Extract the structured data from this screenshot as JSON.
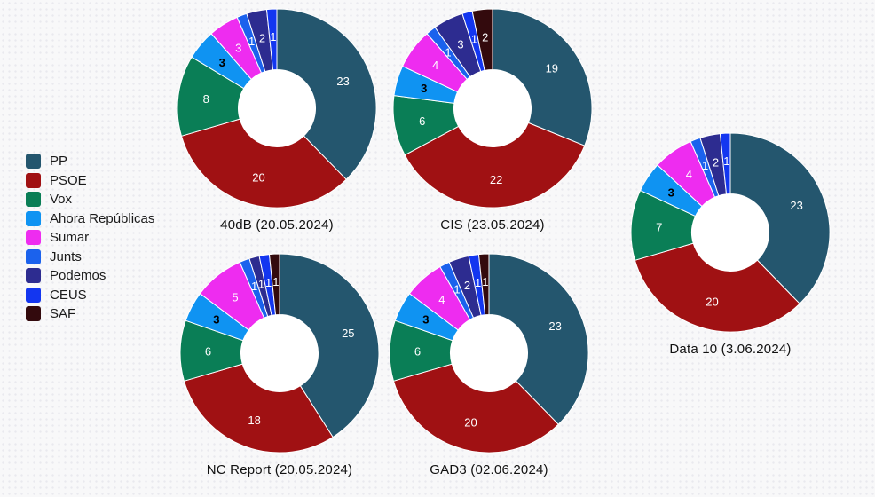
{
  "page": {
    "background_color": "#f8f8f9",
    "dot_color": "#e9e9ee",
    "hole_color": "#ffffff",
    "title_color": "#111111",
    "label_light_color": "#ffffff",
    "label_dark_color": "#000000"
  },
  "palette": {
    "PP": "#24566E",
    "PSOE": "#A01113",
    "Vox": "#0A7E56",
    "Ahora Repúblicas": "#0F93F2",
    "Sumar": "#EE2CF0",
    "Junts": "#1B62ED",
    "Podemos": "#2D2C90",
    "CEUS": "#1336F0",
    "SAF": "#330A0D"
  },
  "legend": {
    "position": "left",
    "items": [
      "PP",
      "PSOE",
      "Vox",
      "Ahora Repúblicas",
      "Sumar",
      "Junts",
      "Podemos",
      "CEUS",
      "SAF"
    ]
  },
  "chart_data": [
    {
      "type": "pie",
      "variant": "donut",
      "title": "40dB (20.05.2024)",
      "slices": [
        {
          "label": "PP",
          "value": 23
        },
        {
          "label": "PSOE",
          "value": 20
        },
        {
          "label": "Vox",
          "value": 8
        },
        {
          "label": "Ahora Repúblicas",
          "value": 3
        },
        {
          "label": "Sumar",
          "value": 3
        },
        {
          "label": "Junts",
          "value": 1
        },
        {
          "label": "Podemos",
          "value": 2
        },
        {
          "label": "CEUS",
          "value": 1
        }
      ]
    },
    {
      "type": "pie",
      "variant": "donut",
      "title": "CIS (23.05.2024)",
      "slices": [
        {
          "label": "PP",
          "value": 19
        },
        {
          "label": "PSOE",
          "value": 22
        },
        {
          "label": "Vox",
          "value": 6
        },
        {
          "label": "Ahora Repúblicas",
          "value": 3
        },
        {
          "label": "Sumar",
          "value": 4
        },
        {
          "label": "Junts",
          "value": 1
        },
        {
          "label": "Podemos",
          "value": 3
        },
        {
          "label": "CEUS",
          "value": 1
        },
        {
          "label": "SAF",
          "value": 2
        }
      ]
    },
    {
      "type": "pie",
      "variant": "donut",
      "title": "Data 10 (3.06.2024)",
      "slices": [
        {
          "label": "PP",
          "value": 23
        },
        {
          "label": "PSOE",
          "value": 20
        },
        {
          "label": "Vox",
          "value": 7
        },
        {
          "label": "Ahora Repúblicas",
          "value": 3
        },
        {
          "label": "Sumar",
          "value": 4
        },
        {
          "label": "Junts",
          "value": 1
        },
        {
          "label": "Podemos",
          "value": 2
        },
        {
          "label": "CEUS",
          "value": 1
        }
      ]
    },
    {
      "type": "pie",
      "variant": "donut",
      "title": "NC Report (20.05.2024)",
      "slices": [
        {
          "label": "PP",
          "value": 25
        },
        {
          "label": "PSOE",
          "value": 18
        },
        {
          "label": "Vox",
          "value": 6
        },
        {
          "label": "Ahora Repúblicas",
          "value": 3
        },
        {
          "label": "Sumar",
          "value": 5
        },
        {
          "label": "Junts",
          "value": 1
        },
        {
          "label": "Podemos",
          "value": 1
        },
        {
          "label": "CEUS",
          "value": 1
        },
        {
          "label": "SAF",
          "value": 1
        }
      ]
    },
    {
      "type": "pie",
      "variant": "donut",
      "title": "GAD3 (02.06.2024)",
      "slices": [
        {
          "label": "PP",
          "value": 23
        },
        {
          "label": "PSOE",
          "value": 20
        },
        {
          "label": "Vox",
          "value": 6
        },
        {
          "label": "Ahora Repúblicas",
          "value": 3
        },
        {
          "label": "Sumar",
          "value": 4
        },
        {
          "label": "Junts",
          "value": 1
        },
        {
          "label": "Podemos",
          "value": 2
        },
        {
          "label": "CEUS",
          "value": 1
        },
        {
          "label": "SAF",
          "value": 1
        }
      ]
    }
  ]
}
